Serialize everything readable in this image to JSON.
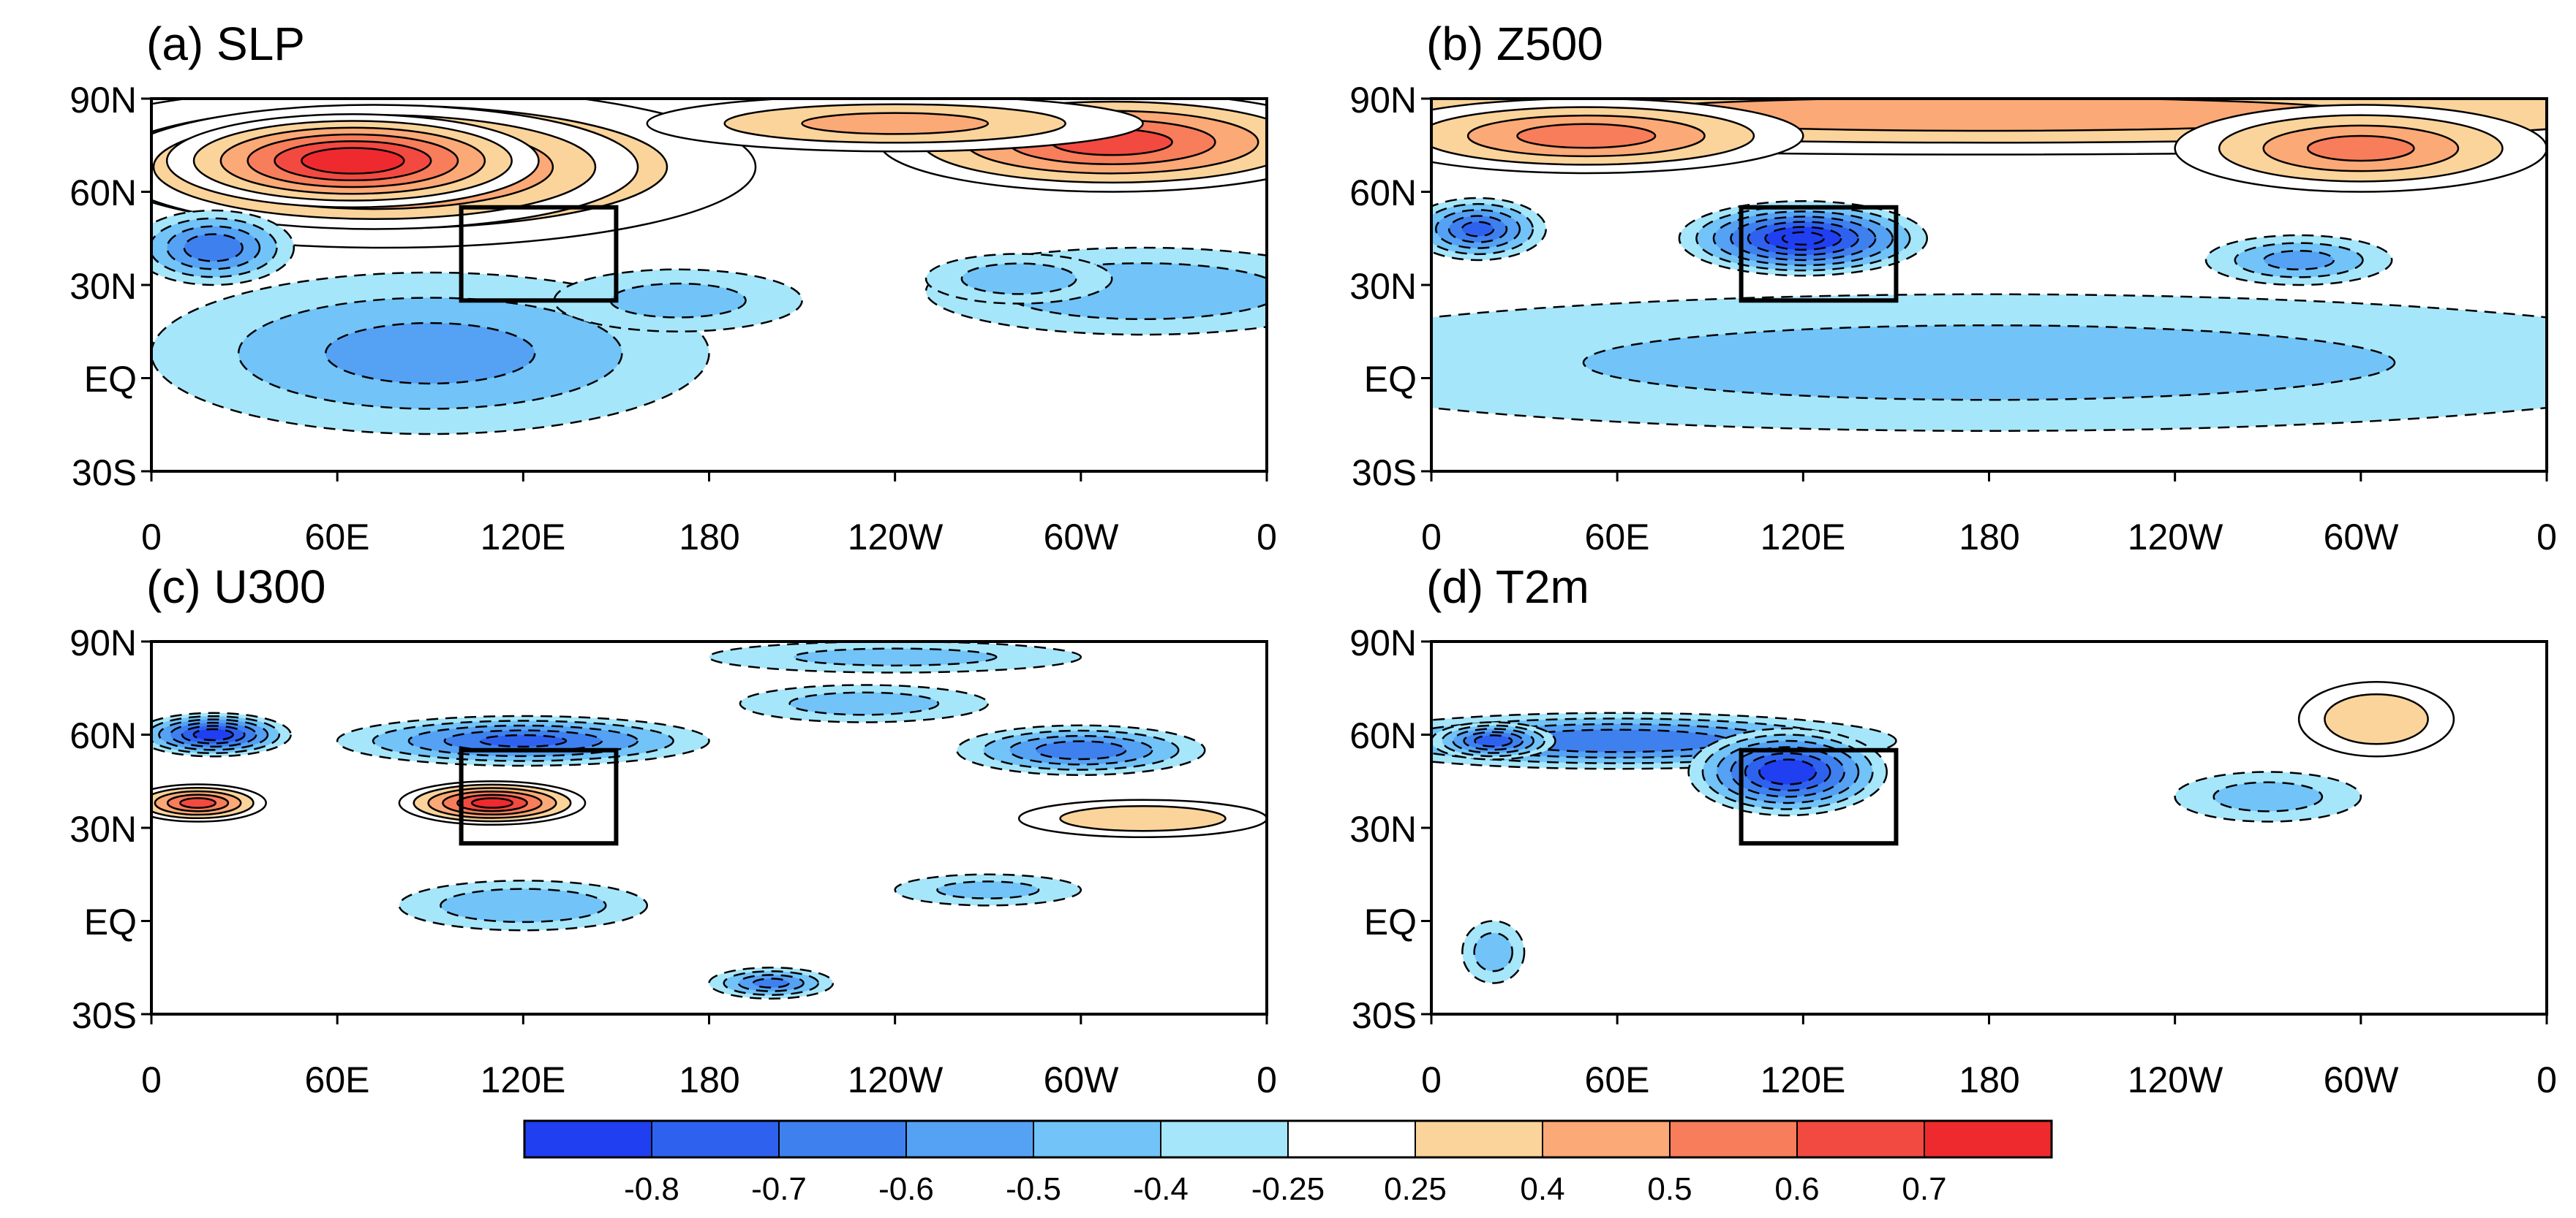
{
  "chart_data": [
    {
      "type": "heatmap",
      "title": "(a) SLP",
      "x_tick_labels": [
        "0",
        "60E",
        "120E",
        "180",
        "120W",
        "60W",
        "0"
      ],
      "y_tick_labels": [
        "90N",
        "60N",
        "30N",
        "EQ",
        "30S"
      ],
      "box_region": {
        "lon": [
          100,
          150
        ],
        "lat": [
          25,
          55
        ]
      },
      "blobs": [
        {
          "lon": 75,
          "lat": 68,
          "level": 4,
          "spread_lon": 120,
          "spread_lat": 26
        },
        {
          "lon": 72,
          "lat": 68,
          "level": 6,
          "spread_lon": 85,
          "spread_lat": 20
        },
        {
          "lon": 65,
          "lat": 70,
          "level": 6.7,
          "spread_lon": 60,
          "spread_lat": 15
        },
        {
          "lon": 310,
          "lat": 76,
          "level": 5.2,
          "spread_lon": 75,
          "spread_lat": 16
        },
        {
          "lon": 240,
          "lat": 82,
          "level": 3,
          "spread_lon": 80,
          "spread_lat": 9
        },
        {
          "lon": 20,
          "lat": 42,
          "level": -4.5,
          "spread_lon": 26,
          "spread_lat": 12
        },
        {
          "lon": 90,
          "lat": 8,
          "level": -3,
          "spread_lon": 90,
          "spread_lat": 26
        },
        {
          "lon": 170,
          "lat": 25,
          "level": -2,
          "spread_lon": 40,
          "spread_lat": 10
        },
        {
          "lon": 320,
          "lat": 28,
          "level": -2.6,
          "spread_lon": 70,
          "spread_lat": 14
        },
        {
          "lon": 280,
          "lat": 32,
          "level": -2.4,
          "spread_lon": 30,
          "spread_lat": 8
        }
      ]
    },
    {
      "type": "heatmap",
      "title": "(b) Z500",
      "x_tick_labels": [
        "0",
        "60E",
        "120E",
        "180",
        "120W",
        "60W",
        "0"
      ],
      "y_tick_labels": [
        "90N",
        "60N",
        "30N",
        "EQ",
        "30S"
      ],
      "box_region": {
        "lon": [
          100,
          150
        ],
        "lat": [
          25,
          55
        ]
      },
      "blobs": [
        {
          "lon": 180,
          "lat": 85,
          "level": 3.2,
          "spread_lon": 300,
          "spread_lat": 13
        },
        {
          "lon": 50,
          "lat": 78,
          "level": 4.2,
          "spread_lon": 70,
          "spread_lat": 12
        },
        {
          "lon": 300,
          "lat": 74,
          "level": 4,
          "spread_lon": 60,
          "spread_lat": 14
        },
        {
          "lon": 120,
          "lat": 45,
          "level": -7,
          "spread_lon": 40,
          "spread_lat": 12
        },
        {
          "lon": 15,
          "lat": 48,
          "level": -5,
          "spread_lon": 22,
          "spread_lat": 10
        },
        {
          "lon": 180,
          "lat": 5,
          "level": -2,
          "spread_lon": 240,
          "spread_lat": 22
        },
        {
          "lon": 280,
          "lat": 38,
          "level": -3,
          "spread_lon": 30,
          "spread_lat": 8
        }
      ]
    },
    {
      "type": "heatmap",
      "title": "(c) U300",
      "x_tick_labels": [
        "0",
        "60E",
        "120E",
        "180",
        "120W",
        "60W",
        "0"
      ],
      "y_tick_labels": [
        "90N",
        "60N",
        "30N",
        "EQ",
        "30S"
      ],
      "box_region": {
        "lon": [
          100,
          150
        ],
        "lat": [
          25,
          55
        ]
      },
      "blobs": [
        {
          "lon": 20,
          "lat": 60,
          "level": -6.5,
          "spread_lon": 25,
          "spread_lat": 7
        },
        {
          "lon": 120,
          "lat": 58,
          "level": -5,
          "spread_lon": 60,
          "spread_lat": 8
        },
        {
          "lon": 300,
          "lat": 55,
          "level": -4.5,
          "spread_lon": 40,
          "spread_lat": 8
        },
        {
          "lon": 230,
          "lat": 70,
          "level": -2.3,
          "spread_lon": 40,
          "spread_lat": 6
        },
        {
          "lon": 240,
          "lat": 85,
          "level": -2,
          "spread_lon": 60,
          "spread_lat": 5
        },
        {
          "lon": 110,
          "lat": 38,
          "level": 6.2,
          "spread_lon": 30,
          "spread_lat": 7
        },
        {
          "lon": 15,
          "lat": 38,
          "level": 5.2,
          "spread_lon": 22,
          "spread_lat": 6
        },
        {
          "lon": 320,
          "lat": 33,
          "level": 2.8,
          "spread_lon": 40,
          "spread_lat": 6
        },
        {
          "lon": 120,
          "lat": 5,
          "level": -2.8,
          "spread_lon": 40,
          "spread_lat": 8
        },
        {
          "lon": 200,
          "lat": -20,
          "level": -4,
          "spread_lon": 20,
          "spread_lat": 5
        },
        {
          "lon": 270,
          "lat": 10,
          "level": -2,
          "spread_lon": 30,
          "spread_lat": 5
        }
      ]
    },
    {
      "type": "heatmap",
      "title": "(d) T2m",
      "x_tick_labels": [
        "0",
        "60E",
        "120E",
        "180",
        "120W",
        "60W",
        "0"
      ],
      "y_tick_labels": [
        "90N",
        "60N",
        "30N",
        "EQ",
        "30S"
      ],
      "box_region": {
        "lon": [
          100,
          150
        ],
        "lat": [
          25,
          55
        ]
      },
      "blobs": [
        {
          "lon": 60,
          "lat": 58,
          "level": -4.8,
          "spread_lon": 90,
          "spread_lat": 9
        },
        {
          "lon": 115,
          "lat": 48,
          "level": -6.8,
          "spread_lon": 32,
          "spread_lat": 14
        },
        {
          "lon": 20,
          "lat": 58,
          "level": -5.5,
          "spread_lon": 20,
          "spread_lat": 6
        },
        {
          "lon": 305,
          "lat": 65,
          "level": 2.8,
          "spread_lon": 25,
          "spread_lat": 12
        },
        {
          "lon": 270,
          "lat": 40,
          "level": -2.2,
          "spread_lon": 30,
          "spread_lat": 8
        },
        {
          "lon": 20,
          "lat": -10,
          "level": -2.4,
          "spread_lon": 10,
          "spread_lat": 10
        }
      ]
    }
  ],
  "colorbar": {
    "colors": [
      "#1f3ff0",
      "#2e62ee",
      "#3f80ef",
      "#55a1f3",
      "#72c3f7",
      "#a6e6fa",
      "#ffffff",
      "#fbd49b",
      "#fba977",
      "#f77d5b",
      "#f24a40",
      "#ee2a2e"
    ],
    "labels": [
      "-0.8",
      "-0.7",
      "-0.6",
      "-0.5",
      "-0.4",
      "-0.25",
      "0.25",
      "0.4",
      "0.5",
      "0.6",
      "0.7"
    ]
  }
}
